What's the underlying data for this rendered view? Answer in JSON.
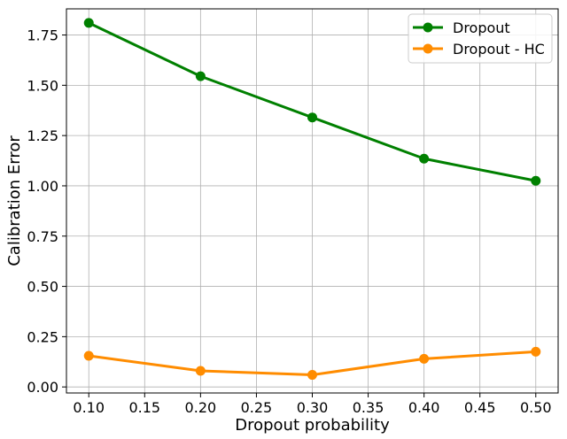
{
  "chart_data": {
    "type": "line",
    "title": "",
    "xlabel": "Dropout probability",
    "ylabel": "Calibration Error",
    "x": [
      0.1,
      0.2,
      0.3,
      0.4,
      0.5
    ],
    "xlim": [
      0.08,
      0.52
    ],
    "ylim": [
      -0.03,
      1.88
    ],
    "xticks": [
      0.1,
      0.15,
      0.2,
      0.25,
      0.3,
      0.35,
      0.4,
      0.45,
      0.5
    ],
    "xtick_labels": [
      "0.10",
      "0.15",
      "0.20",
      "0.25",
      "0.30",
      "0.35",
      "0.40",
      "0.45",
      "0.50"
    ],
    "yticks": [
      0.0,
      0.25,
      0.5,
      0.75,
      1.0,
      1.25,
      1.5,
      1.75
    ],
    "ytick_labels": [
      "0.00",
      "0.25",
      "0.50",
      "0.75",
      "1.00",
      "1.25",
      "1.50",
      "1.75"
    ],
    "grid": true,
    "legend_position": "top-right",
    "series": [
      {
        "name": "Dropout",
        "color": "#008000",
        "values": [
          1.81,
          1.545,
          1.34,
          1.135,
          1.025
        ]
      },
      {
        "name": "Dropout - HC",
        "color": "#ff8c00",
        "values": [
          0.155,
          0.08,
          0.06,
          0.14,
          0.175
        ]
      }
    ]
  }
}
